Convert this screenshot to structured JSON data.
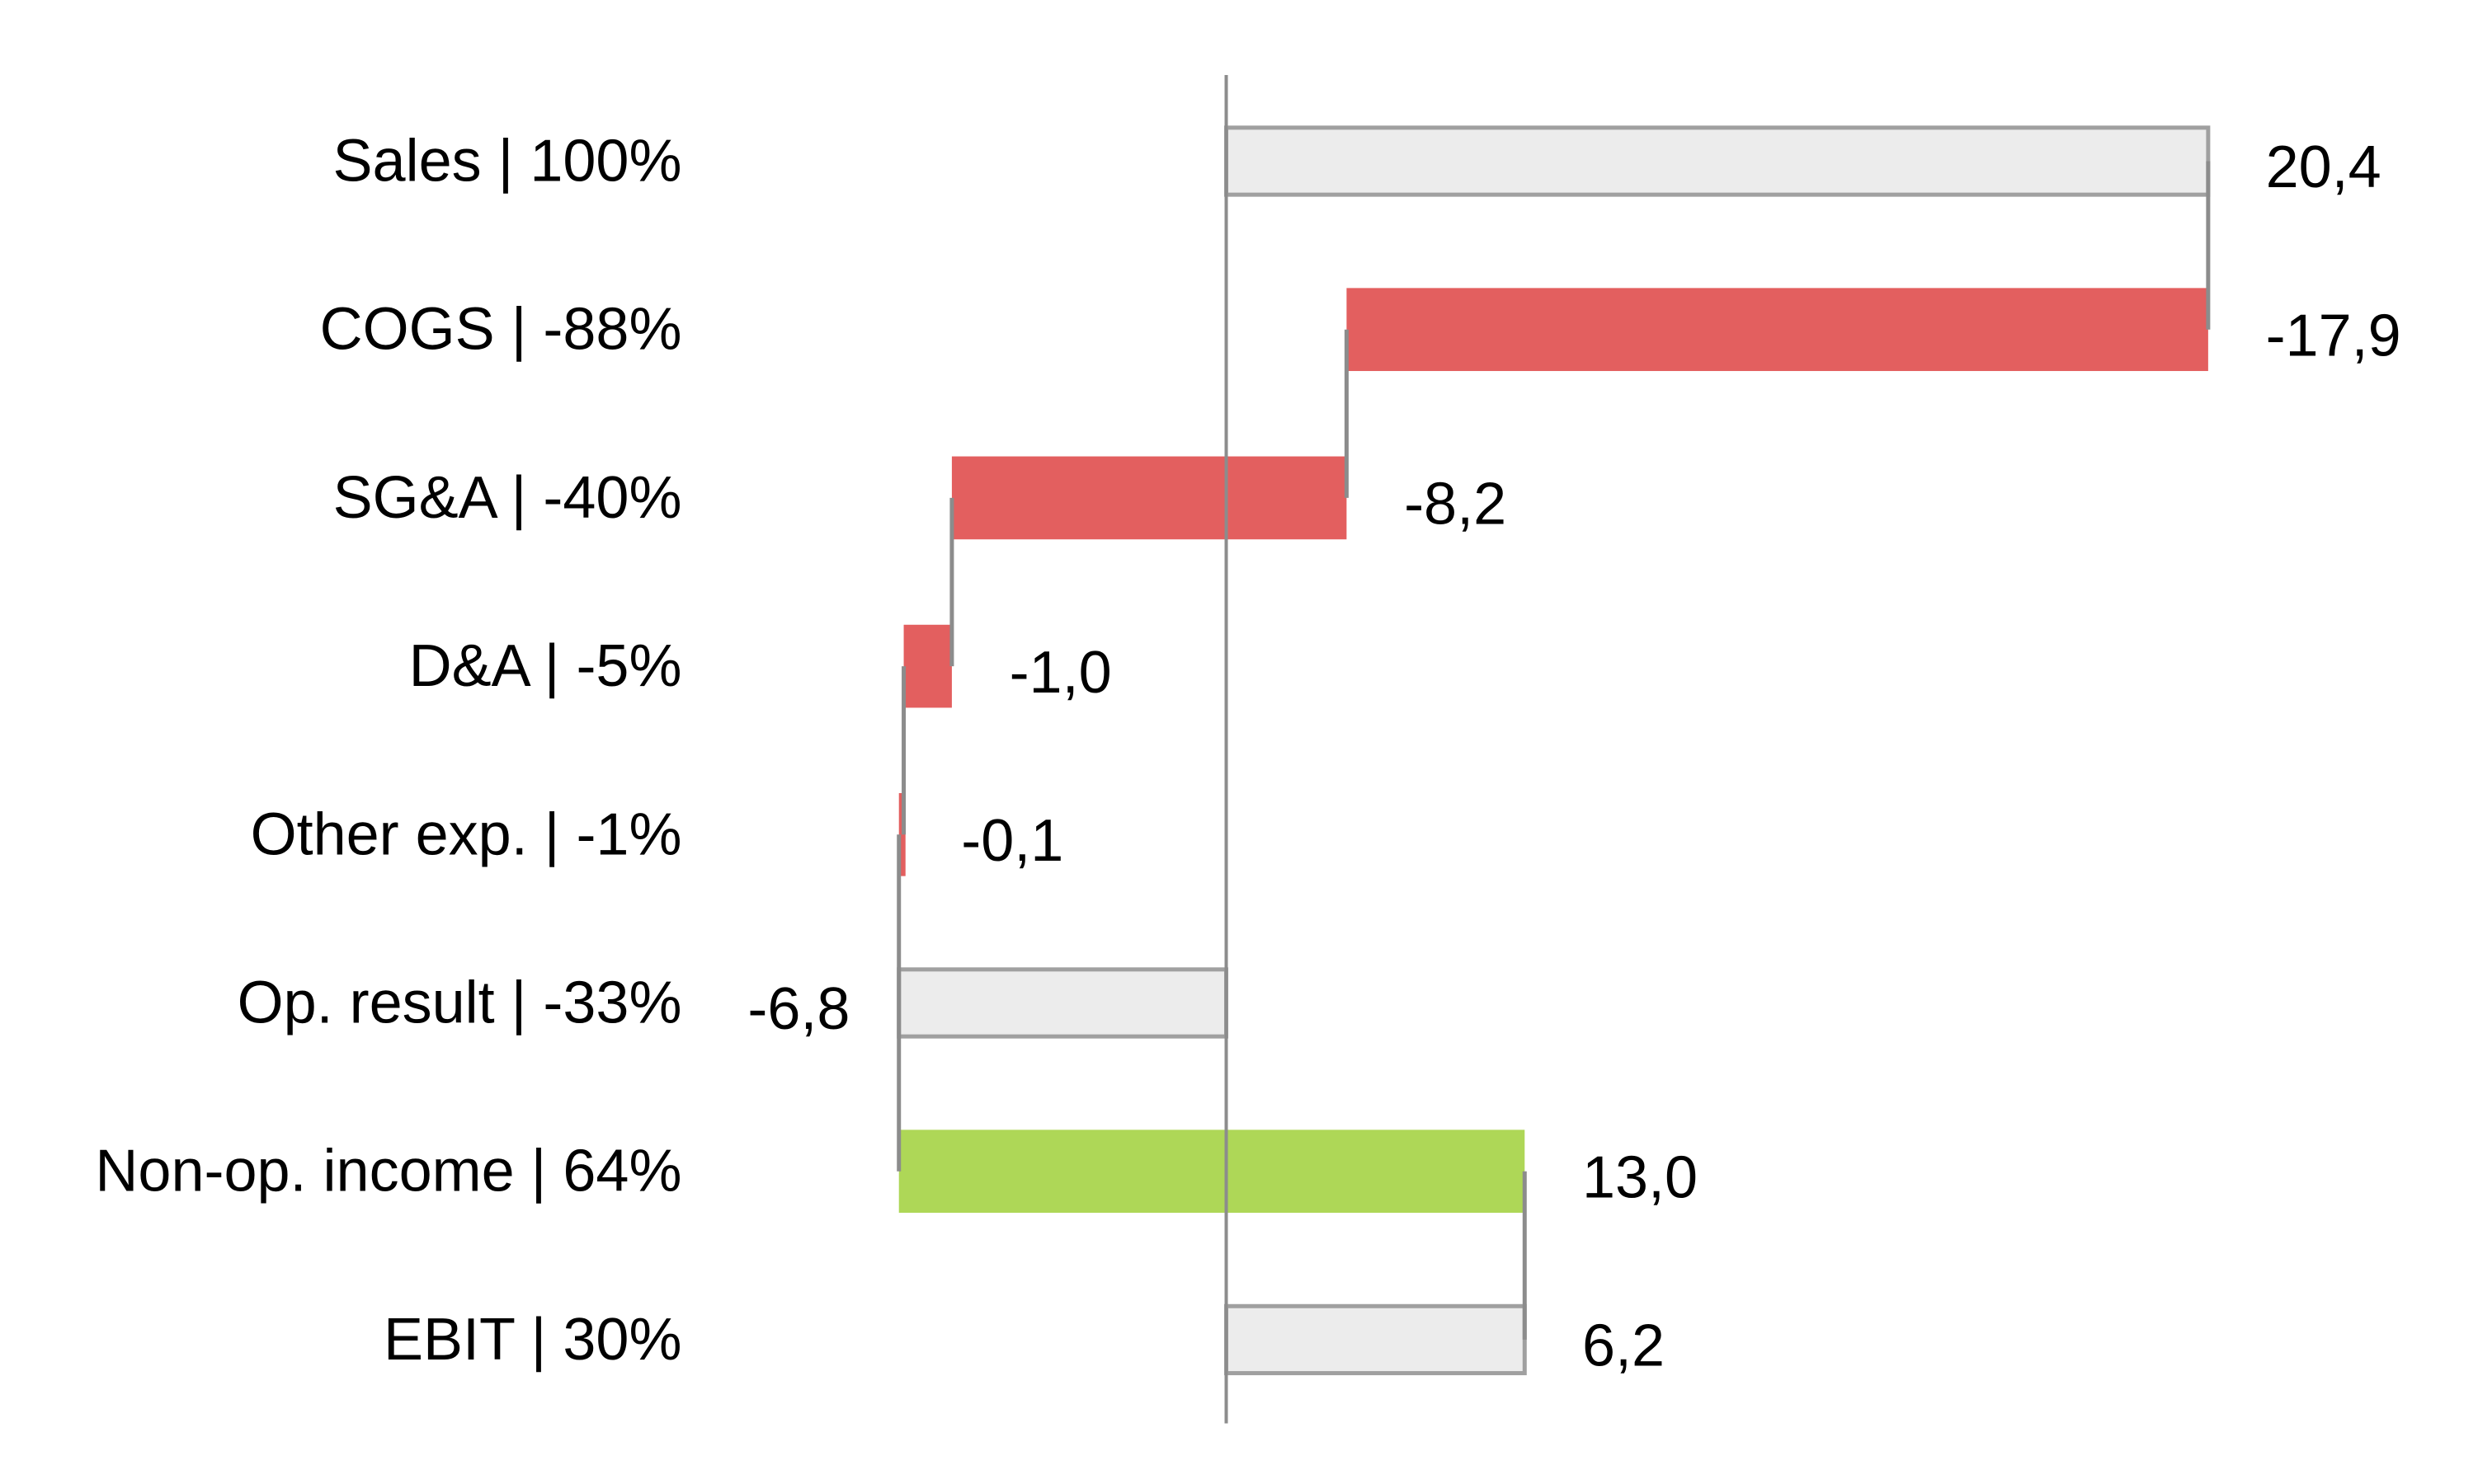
{
  "chart_data": {
    "type": "waterfall",
    "orientation": "horizontal",
    "title": "",
    "xlabel": "",
    "ylabel": "",
    "grid": false,
    "legend": "none",
    "decimal_separator": ",",
    "categories": [
      "Sales | 100%",
      "COGS | -88%",
      "SG&A | -40%",
      "D&A | -5%",
      "Other exp. | -1%",
      "Op. result | -33%",
      "Non-op. income | 64%",
      "EBIT | 30%"
    ],
    "values": [
      20.4,
      -17.9,
      -8.2,
      -1.0,
      -0.1,
      -6.8,
      13.0,
      6.2
    ],
    "value_labels": [
      "20,4",
      "-17,9",
      "-8,2",
      "-1,0",
      "-0,1",
      "-6,8",
      "13,0",
      "6,2"
    ],
    "kinds": [
      "total",
      "delta",
      "delta",
      "delta",
      "delta",
      "total",
      "delta",
      "total"
    ],
    "xlim": [
      -6.8,
      20.4
    ],
    "colors": {
      "total_fill": "#ececec",
      "total_stroke": "#a0a0a0",
      "negative": "#e35f5f",
      "positive": "#aed757",
      "axis": "#8c8c8c",
      "connector": "#8c8c8c"
    }
  }
}
